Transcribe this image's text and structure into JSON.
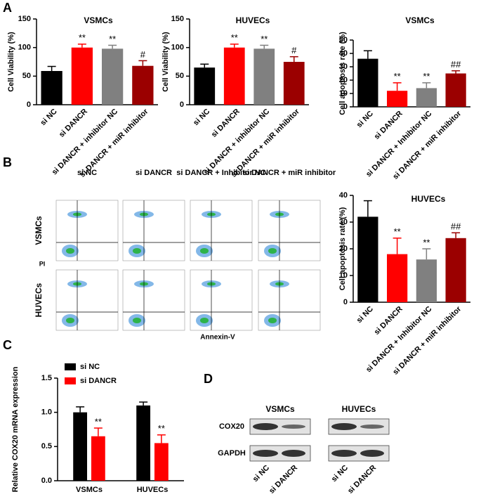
{
  "panels": [
    "A",
    "B",
    "C",
    "D"
  ],
  "chart_data": [
    {
      "type": "bar",
      "title": "VSMCs",
      "ylabel": "Cell Viability (%)",
      "categories": [
        "si NC",
        "si DANCR",
        "si DANCR + inhibitor NC",
        "si DANCR + miR inhibitor"
      ],
      "values": [
        59,
        100,
        98,
        68
      ],
      "errors": [
        8,
        6,
        6,
        9
      ],
      "annotations": [
        null,
        "**",
        "**",
        "#"
      ],
      "colors": [
        "#000000",
        "#ff0000",
        "#808080",
        "#9b0000"
      ],
      "ylim": [
        0,
        150
      ],
      "yticks": [
        0,
        50,
        100,
        150
      ]
    },
    {
      "type": "bar",
      "title": "HUVECs",
      "ylabel": "Cell Viability (%)",
      "categories": [
        "si NC",
        "si DANCR",
        "si DANCR + inhibitor NC",
        "si DANCR + miR inhibitor"
      ],
      "values": [
        65,
        100,
        98,
        75
      ],
      "errors": [
        6,
        6,
        6,
        9
      ],
      "annotations": [
        null,
        "**",
        "**",
        "#"
      ],
      "colors": [
        "#000000",
        "#ff0000",
        "#808080",
        "#9b0000"
      ],
      "ylim": [
        0,
        150
      ],
      "yticks": [
        0,
        50,
        100,
        150
      ]
    },
    {
      "type": "bar",
      "title": "VSMCs",
      "ylabel": "Cell apoptosis rate (%)",
      "categories": [
        "si NC",
        "si DANCR",
        "si DANCR + Inhibitor NC",
        "si DANCR + miR inhibitor"
      ],
      "values": [
        36,
        12,
        14,
        25
      ],
      "errors": [
        6,
        6,
        4,
        2
      ],
      "annotations": [
        null,
        "**",
        "**",
        "##"
      ],
      "colors": [
        "#000000",
        "#ff0000",
        "#808080",
        "#9b0000"
      ],
      "ylim": [
        0,
        50
      ],
      "yticks": [
        0,
        10,
        20,
        30,
        40,
        50
      ]
    },
    {
      "type": "bar",
      "title": "HUVECs",
      "ylabel": "Cell apoptosis rate (%)",
      "categories": [
        "si NC",
        "si DANCR",
        "si DANCR + Inhibitor NC",
        "si DANCR + miR inhibitor"
      ],
      "values": [
        32,
        18,
        16,
        24
      ],
      "errors": [
        6,
        6,
        4,
        2
      ],
      "annotations": [
        null,
        "**",
        "**",
        "##"
      ],
      "colors": [
        "#000000",
        "#ff0000",
        "#808080",
        "#9b0000"
      ],
      "ylim": [
        0,
        40
      ],
      "yticks": [
        0,
        10,
        20,
        30,
        40
      ]
    },
    {
      "type": "grouped_bar",
      "ylabel": "Relative COX20 mRNA expression",
      "categories": [
        "VSMCs",
        "HUVECs"
      ],
      "series": [
        {
          "name": "si NC",
          "color": "#000000",
          "values": [
            1.0,
            1.1
          ],
          "errors": [
            0.08,
            0.05
          ],
          "annotations": [
            null,
            null
          ]
        },
        {
          "name": "si DANCR",
          "color": "#ff0000",
          "values": [
            0.65,
            0.55
          ],
          "errors": [
            0.12,
            0.12
          ],
          "annotations": [
            "**",
            "**"
          ]
        }
      ],
      "ylim": [
        0,
        1.5
      ],
      "yticks": [
        {
          "value": 0,
          "label": "0.0"
        },
        {
          "value": 0.5,
          "label": "0.5"
        },
        {
          "value": 1,
          "label": "1.0"
        },
        {
          "value": 1.5,
          "label": "1.5"
        }
      ],
      "legend": "top-left"
    }
  ],
  "flow": {
    "columns": [
      "si NC",
      "si DANCR",
      "si DANCR + Inhibitor NC",
      "si DANCR + miR inhibitor"
    ],
    "rows": [
      "VSMCs",
      "HUVECs"
    ],
    "ylabel": "PI",
    "xlabel": "Annexin-V"
  },
  "blot": {
    "groups": [
      "VSMCs",
      "HUVECs"
    ],
    "proteins": [
      "COX20",
      "GAPDH"
    ],
    "lanes": [
      "si NC",
      "si DANCR"
    ]
  }
}
